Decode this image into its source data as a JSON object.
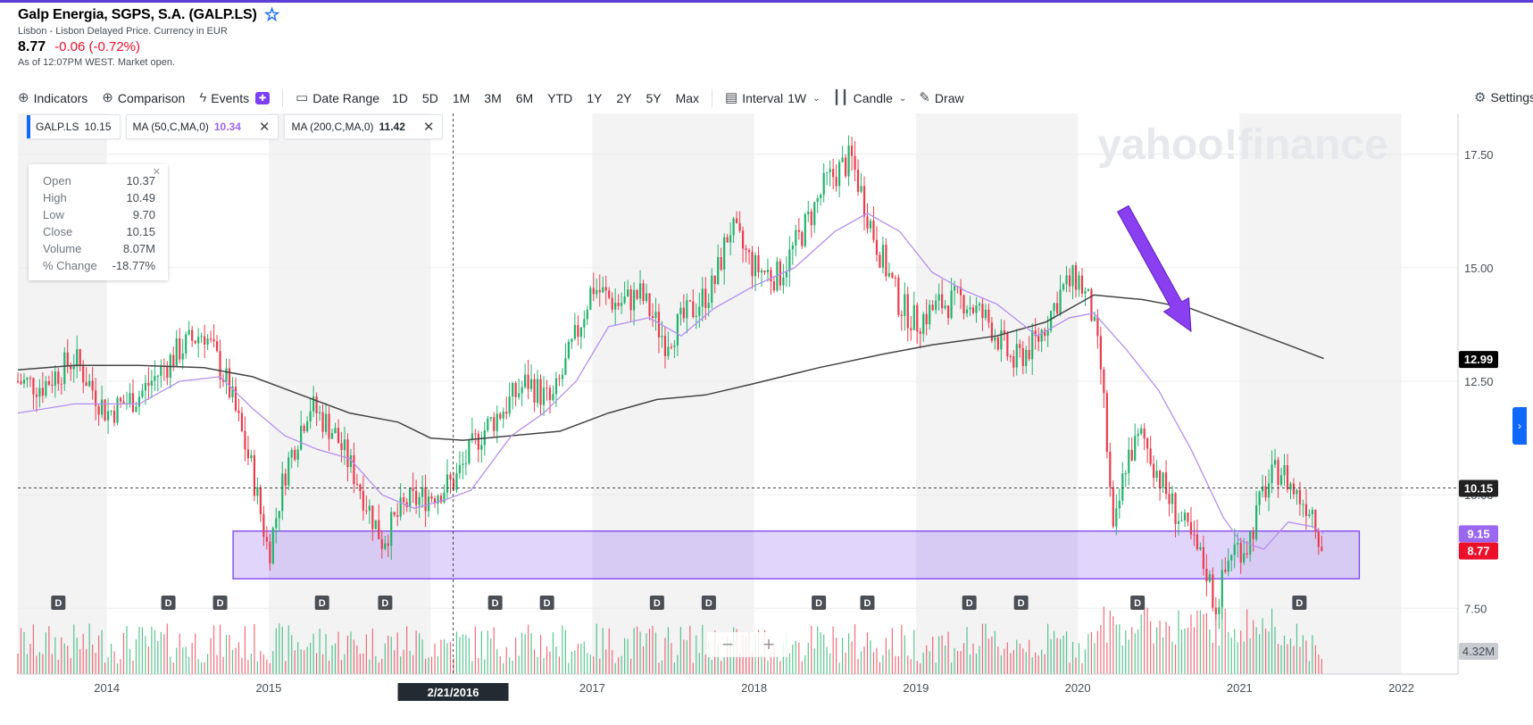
{
  "quote": {
    "title": "Galp Energia, SGPS, S.A. (GALP.LS)",
    "subtitle": "Lisbon - Lisbon Delayed Price. Currency in EUR",
    "price": "8.77",
    "change": "-0.06 (-0.72%)",
    "as_of": "As of 12:07PM WEST. Market open."
  },
  "toolbar": {
    "indicators": "Indicators",
    "comparison": "Comparison",
    "events": "Events",
    "date_range": "Date Range",
    "ranges": [
      "1D",
      "5D",
      "1M",
      "3M",
      "6M",
      "YTD",
      "1Y",
      "2Y",
      "5Y",
      "Max"
    ],
    "interval_label": "Interval",
    "interval_value": "1W",
    "chart_type": "Candle",
    "draw": "Draw",
    "settings": "Settings"
  },
  "chips": [
    {
      "label": "GALP.LS",
      "value": "10.15",
      "color": "#232a31"
    },
    {
      "label": "MA (50,C,MA,0)",
      "value": "10.34",
      "color": "#9b66f0"
    },
    {
      "label": "MA (200,C,MA,0)",
      "value": "11.42",
      "color": "#000000"
    }
  ],
  "tooltip": [
    {
      "k": "Open",
      "v": "10.37"
    },
    {
      "k": "High",
      "v": "10.49"
    },
    {
      "k": "Low",
      "v": "9.70"
    },
    {
      "k": "Close",
      "v": "10.15"
    },
    {
      "k": "Volume",
      "v": "8.07M"
    },
    {
      "k": "% Change",
      "v": "-18.77%"
    }
  ],
  "chart_data": {
    "type": "line",
    "title": "",
    "watermark": "yahoo!finance",
    "colors": {
      "up": "#21b26b",
      "down": "#eb3c4c",
      "ma50": "#b48ef0",
      "ma200": "#444444",
      "support_zone": "#7a3ff0"
    },
    "x_range": [
      2013.45,
      2022.35
    ],
    "ylim": [
      6.05,
      18.4
    ],
    "y_ticks": [
      "7.50",
      "10.00",
      "12.50",
      "15.00",
      "17.50"
    ],
    "y_tick_values": [
      7.5,
      10,
      12.5,
      15,
      17.5
    ],
    "x_ticks": [
      "2014",
      "2015",
      "2016",
      "2017",
      "2018",
      "2019",
      "2020",
      "2021",
      "2022"
    ],
    "x_tick_values": [
      2014,
      2015,
      2016,
      2017,
      2018,
      2019,
      2020,
      2021,
      2022
    ],
    "crosshair": {
      "date": "2/21/2016",
      "x": 2016.14,
      "price": 10.15
    },
    "badges": [
      {
        "text": "12.99",
        "value": 12.99,
        "bg": "#000000",
        "color": "#ffffff"
      },
      {
        "text": "10.15",
        "value": 10.15,
        "bg": "#222222",
        "color": "#ffffff"
      },
      {
        "text": "9.15",
        "value": 9.15,
        "bg": "#9b66f0",
        "color": "#ffffff"
      },
      {
        "text": "8.77",
        "value": 8.77,
        "bg": "#eb0f29",
        "color": "#ffffff"
      }
    ],
    "volume_badge": "4.32M",
    "dividend_marker": "D",
    "dividend_dates": [
      2013.7,
      2014.38,
      2014.7,
      2015.33,
      2015.72,
      2016.4,
      2016.72,
      2017.4,
      2017.72,
      2018.4,
      2018.7,
      2019.33,
      2019.65,
      2020.37,
      2021.37
    ],
    "support_zone": {
      "x0": 2014.78,
      "x1": 2021.74,
      "y_low": 8.15,
      "y_high": 9.2
    },
    "annotation_arrow": {
      "from": [
        2020.28,
        16.3
      ],
      "to": [
        2020.7,
        13.6
      ]
    },
    "price_path": [
      [
        2013.45,
        12.5
      ],
      [
        2013.6,
        12.4
      ],
      [
        2013.8,
        13.0
      ],
      [
        2014.0,
        11.8
      ],
      [
        2014.2,
        12.2
      ],
      [
        2014.45,
        13.2
      ],
      [
        2014.6,
        13.6
      ],
      [
        2014.75,
        12.4
      ],
      [
        2014.9,
        10.5
      ],
      [
        2015.0,
        8.7
      ],
      [
        2015.1,
        10.5
      ],
      [
        2015.25,
        12.0
      ],
      [
        2015.4,
        11.4
      ],
      [
        2015.55,
        10.3
      ],
      [
        2015.7,
        9.0
      ],
      [
        2015.85,
        9.8
      ],
      [
        2016.0,
        10.0
      ],
      [
        2016.15,
        10.3
      ],
      [
        2016.3,
        11.3
      ],
      [
        2016.45,
        11.9
      ],
      [
        2016.6,
        12.5
      ],
      [
        2016.75,
        12.0
      ],
      [
        2016.9,
        13.5
      ],
      [
        2017.0,
        14.6
      ],
      [
        2017.15,
        14.2
      ],
      [
        2017.3,
        14.4
      ],
      [
        2017.45,
        13.4
      ],
      [
        2017.6,
        14.0
      ],
      [
        2017.75,
        14.6
      ],
      [
        2017.85,
        15.9
      ],
      [
        2018.0,
        15.0
      ],
      [
        2018.15,
        14.8
      ],
      [
        2018.3,
        15.8
      ],
      [
        2018.45,
        16.9
      ],
      [
        2018.6,
        17.4
      ],
      [
        2018.75,
        15.6
      ],
      [
        2018.9,
        14.2
      ],
      [
        2019.0,
        13.8
      ],
      [
        2019.15,
        14.2
      ],
      [
        2019.3,
        14.3
      ],
      [
        2019.45,
        13.8
      ],
      [
        2019.6,
        12.9
      ],
      [
        2019.75,
        13.4
      ],
      [
        2019.9,
        14.5
      ],
      [
        2020.0,
        14.8
      ],
      [
        2020.08,
        14.1
      ],
      [
        2020.15,
        12.6
      ],
      [
        2020.22,
        9.0
      ],
      [
        2020.3,
        10.8
      ],
      [
        2020.4,
        11.3
      ],
      [
        2020.55,
        10.0
      ],
      [
        2020.7,
        9.0
      ],
      [
        2020.8,
        8.3
      ],
      [
        2020.85,
        7.5
      ],
      [
        2020.95,
        8.8
      ],
      [
        2021.05,
        8.9
      ],
      [
        2021.15,
        10.1
      ],
      [
        2021.25,
        10.6
      ],
      [
        2021.35,
        10.0
      ],
      [
        2021.45,
        9.7
      ],
      [
        2021.52,
        8.77
      ]
    ],
    "ma50_path": [
      [
        2013.45,
        11.8
      ],
      [
        2013.8,
        12.0
      ],
      [
        2014.2,
        12.0
      ],
      [
        2014.45,
        12.5
      ],
      [
        2014.7,
        12.6
      ],
      [
        2014.9,
        11.9
      ],
      [
        2015.1,
        11.3
      ],
      [
        2015.3,
        11.0
      ],
      [
        2015.5,
        10.8
      ],
      [
        2015.7,
        10.0
      ],
      [
        2015.9,
        9.7
      ],
      [
        2016.1,
        9.9
      ],
      [
        2016.25,
        10.1
      ],
      [
        2016.5,
        11.3
      ],
      [
        2016.7,
        11.8
      ],
      [
        2016.9,
        12.5
      ],
      [
        2017.1,
        13.7
      ],
      [
        2017.35,
        13.9
      ],
      [
        2017.55,
        13.5
      ],
      [
        2017.75,
        14.1
      ],
      [
        2018.0,
        14.6
      ],
      [
        2018.25,
        15.0
      ],
      [
        2018.5,
        15.8
      ],
      [
        2018.7,
        16.2
      ],
      [
        2018.9,
        15.8
      ],
      [
        2019.1,
        14.9
      ],
      [
        2019.3,
        14.5
      ],
      [
        2019.5,
        14.2
      ],
      [
        2019.75,
        13.5
      ],
      [
        2019.95,
        13.9
      ],
      [
        2020.1,
        14.0
      ],
      [
        2020.3,
        13.2
      ],
      [
        2020.5,
        12.3
      ],
      [
        2020.7,
        11.0
      ],
      [
        2020.9,
        9.5
      ],
      [
        2021.0,
        9.0
      ],
      [
        2021.15,
        8.8
      ],
      [
        2021.3,
        9.4
      ],
      [
        2021.45,
        9.3
      ],
      [
        2021.52,
        9.15
      ]
    ],
    "ma200_path": [
      [
        2013.45,
        12.75
      ],
      [
        2013.8,
        12.85
      ],
      [
        2014.2,
        12.85
      ],
      [
        2014.6,
        12.8
      ],
      [
        2014.9,
        12.6
      ],
      [
        2015.2,
        12.2
      ],
      [
        2015.5,
        11.8
      ],
      [
        2015.8,
        11.6
      ],
      [
        2016.0,
        11.25
      ],
      [
        2016.2,
        11.2
      ],
      [
        2016.5,
        11.3
      ],
      [
        2016.8,
        11.4
      ],
      [
        2017.1,
        11.8
      ],
      [
        2017.4,
        12.1
      ],
      [
        2017.7,
        12.2
      ],
      [
        2018.0,
        12.45
      ],
      [
        2018.4,
        12.8
      ],
      [
        2018.8,
        13.1
      ],
      [
        2019.1,
        13.3
      ],
      [
        2019.5,
        13.5
      ],
      [
        2019.8,
        13.8
      ],
      [
        2020.0,
        14.2
      ],
      [
        2020.1,
        14.4
      ],
      [
        2020.4,
        14.3
      ],
      [
        2020.7,
        14.1
      ],
      [
        2021.0,
        13.7
      ],
      [
        2021.3,
        13.3
      ],
      [
        2021.52,
        13.0
      ]
    ]
  }
}
